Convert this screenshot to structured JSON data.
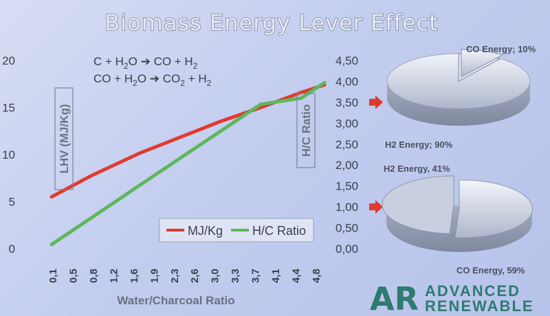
{
  "chart_data": [
    {
      "type": "line",
      "title": "Biomass Energy Lever Effect",
      "xlabel": "Water/Charcoal Ratio",
      "ylabel_left": "LHV (MJ/Kg)",
      "ylabel_right": "H/C Ratio",
      "x_ticks": [
        "0,1",
        "0,5",
        "0,8",
        "1,2",
        "1,6",
        "1,9",
        "2,3",
        "2,6",
        "3,0",
        "3,3",
        "3,7",
        "4,1",
        "4,4",
        "4,8"
      ],
      "y_left_ticks": [
        "0",
        "5",
        "10",
        "15",
        "20"
      ],
      "y_right_ticks": [
        "0,00",
        "0,50",
        "1,00",
        "1,50",
        "2,00",
        "2,50",
        "3,00",
        "3,50",
        "4,00",
        "4,50"
      ],
      "ylim_left": [
        0,
        20
      ],
      "ylim_right": [
        0,
        4.5
      ],
      "xlim": [
        0.1,
        4.8
      ],
      "series": [
        {
          "name": "MJ/Kg",
          "axis": "left",
          "color": "#e03a2f",
          "x": [
            0.1,
            0.8,
            1.6,
            2.3,
            3.0,
            3.7,
            4.4,
            4.8
          ],
          "y": [
            5.5,
            7.8,
            10.1,
            11.8,
            13.5,
            15.0,
            16.6,
            17.4
          ]
        },
        {
          "name": "H/C Ratio",
          "axis": "right",
          "color": "#5db85b",
          "x": [
            0.1,
            0.8,
            1.6,
            2.3,
            3.0,
            3.7,
            4.4,
            4.8
          ],
          "y": [
            0.1,
            0.75,
            1.5,
            2.15,
            2.8,
            3.45,
            3.6,
            3.97
          ]
        }
      ],
      "legend": "bottom-right",
      "grid": false,
      "annotations": {
        "reaction_1": {
          "lhs": [
            "C + H",
            "2",
            "O"
          ],
          "rhs": [
            "CO + H",
            "2",
            ""
          ]
        },
        "reaction_2": {
          "lhs": [
            "CO + H",
            "2",
            "O"
          ],
          "rhs": [
            "CO",
            "2",
            " + H",
            "2",
            ""
          ]
        }
      },
      "arrows_at_right_values": [
        3.5,
        1.0
      ]
    },
    {
      "type": "pie",
      "labels": [
        "CO Energy; 10%",
        "H2 Energy; 90%"
      ],
      "values": [
        10,
        90
      ],
      "exploded": "CO Energy"
    },
    {
      "type": "pie",
      "labels": [
        "H2 Energy, 41%",
        "CO Energy, 59%"
      ],
      "values": [
        41,
        59
      ],
      "exploded": "H2 Energy"
    }
  ],
  "logo": {
    "mark": "AR",
    "line1": "ADVANCED",
    "line2": "RENEWABLE"
  },
  "colors": {
    "accent_arrow": "#e03a2f",
    "logo": "#2e7b6f",
    "pie_fill": "#b9c2d4",
    "pie_edge": "#8d96aa"
  }
}
